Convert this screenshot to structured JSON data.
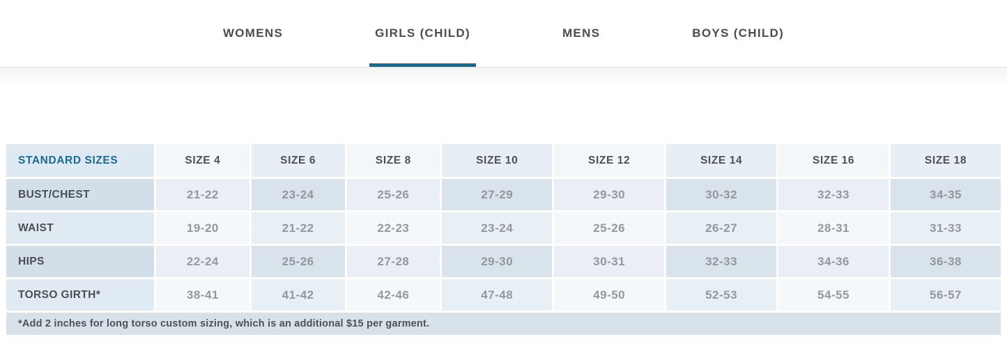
{
  "tabs": {
    "items": [
      {
        "label": "WOMENS",
        "active": false
      },
      {
        "label": "GIRLS (CHILD)",
        "active": true
      },
      {
        "label": "MENS",
        "active": false
      },
      {
        "label": "BOYS (CHILD)",
        "active": false
      }
    ]
  },
  "size_chart": {
    "columns": [
      "STANDARD SIZES",
      "SIZE 4",
      "SIZE 6",
      "SIZE 8",
      "SIZE 10",
      "SIZE 12",
      "SIZE 14",
      "SIZE 16",
      "SIZE 18"
    ],
    "rows": [
      {
        "label": "BUST/CHEST",
        "values": [
          "21-22",
          "23-24",
          "25-26",
          "27-29",
          "29-30",
          "30-32",
          "32-33",
          "34-35"
        ]
      },
      {
        "label": "WAIST",
        "values": [
          "19-20",
          "21-22",
          "22-23",
          "23-24",
          "25-26",
          "26-27",
          "28-31",
          "31-33"
        ]
      },
      {
        "label": "HIPS",
        "values": [
          "22-24",
          "25-26",
          "27-28",
          "29-30",
          "30-31",
          "32-33",
          "34-36",
          "36-38"
        ]
      },
      {
        "label": "TORSO GIRTH*",
        "values": [
          "38-41",
          "41-42",
          "42-46",
          "47-48",
          "49-50",
          "52-53",
          "54-55",
          "56-57"
        ]
      }
    ],
    "footnote": "*Add 2 inches for long torso custom sizing, which is an additional $15 per garment."
  },
  "colors": {
    "accent_teal_text": "#1b6b93",
    "active_tab_underline": "#17698f",
    "tab_text": "#4c4c4e",
    "row_label_text": "#4b4e53",
    "data_value_text": "#94989d"
  }
}
